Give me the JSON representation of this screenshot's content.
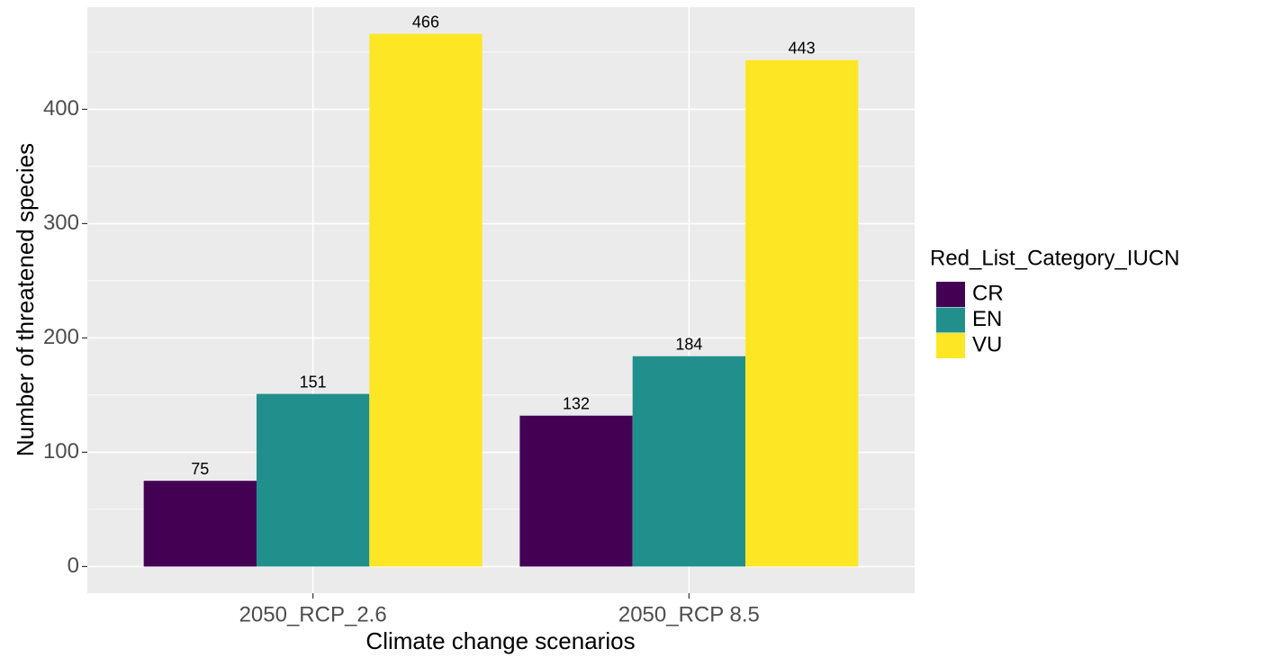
{
  "chart_data": {
    "type": "bar",
    "x_label": "Climate change scenarios",
    "y_label": "Number of threatened species",
    "categories": [
      "2050_RCP_2.6",
      "2050_RCP 8.5"
    ],
    "series": [
      {
        "name": "CR",
        "color": "#440154",
        "values": [
          75,
          132
        ]
      },
      {
        "name": "EN",
        "color": "#21908C",
        "values": [
          151,
          184
        ]
      },
      {
        "name": "VU",
        "color": "#FDE725",
        "values": [
          466,
          443
        ]
      }
    ],
    "legend_title": "Red_List_Category_IUCN",
    "legend_position": "right",
    "ylim": [
      -23.3,
      489.3
    ],
    "yticks": [
      0,
      100,
      200,
      300,
      400
    ],
    "y_minor_grid": [
      50,
      150,
      250,
      350,
      450
    ],
    "grid": true
  }
}
